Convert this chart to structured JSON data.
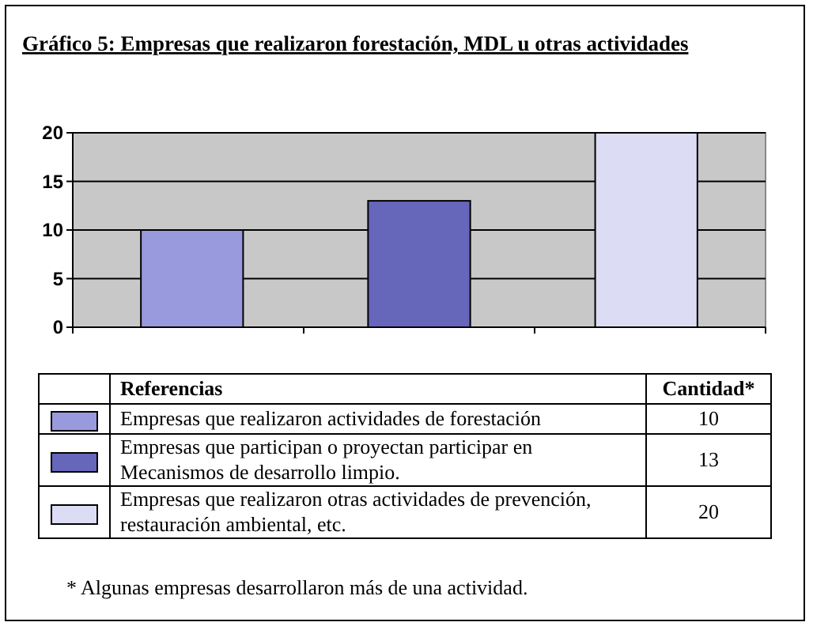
{
  "chart_data": {
    "type": "bar",
    "title": "Gráfico 5: Empresas que realizaron forestación, MDL u otras actividades",
    "categories": [
      null,
      null,
      null
    ],
    "series": [
      {
        "name": "Empresas que realizaron actividades de forestación",
        "color": "#9999dd",
        "values": [
          10,
          null,
          null
        ]
      },
      {
        "name": "Empresas que participan o proyectan participar en Mecanismos de desarrollo limpio.",
        "color": "#6666bb",
        "values": [
          null,
          13,
          null
        ]
      },
      {
        "name": "Empresas que realizaron otras actividades de prevención, restauración ambiental, etc.",
        "color": "#dcdcf4",
        "values": [
          null,
          null,
          20
        ]
      }
    ],
    "ylim": [
      0,
      20
    ],
    "yticks": [
      0,
      5,
      10,
      15,
      20
    ],
    "grid": "y",
    "legend": "bottom",
    "legend_title": "Referencias",
    "annotations": [
      "Cantidad*",
      "10",
      "13",
      "20",
      "* Algunas empresas desarrollaron más de una actividad."
    ]
  }
}
